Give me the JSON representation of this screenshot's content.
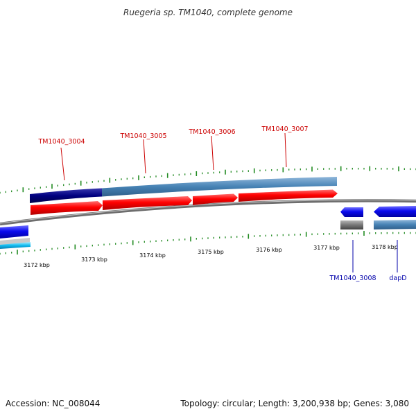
{
  "title": "Ruegeria sp. TM1040, complete genome",
  "footer": {
    "accession": "Accession: NC_008044",
    "summary": "Topology: circular; Length: 3,200,938 bp; Genes: 3,080"
  },
  "colors": {
    "forward_cds": "#ff0000",
    "reverse_cds": "#0000ee",
    "forward_gene_bar": "#4682b4",
    "highlight_bar": "#000080",
    "backbone": "#808080",
    "tick": "#228B22",
    "forward_label": "#cc0000",
    "reverse_label": "#0000aa"
  },
  "scale": {
    "labels": [
      "3172 kbp",
      "3173 kbp",
      "3174 kbp",
      "3175 kbp",
      "3176 kbp",
      "3177 kbp",
      "3178 kbp"
    ]
  },
  "genes": {
    "forward": [
      "TM1040_3004",
      "TM1040_3005",
      "TM1040_3006",
      "TM1040_3007"
    ],
    "reverse": [
      "TM1040_3008",
      "dapD"
    ]
  }
}
